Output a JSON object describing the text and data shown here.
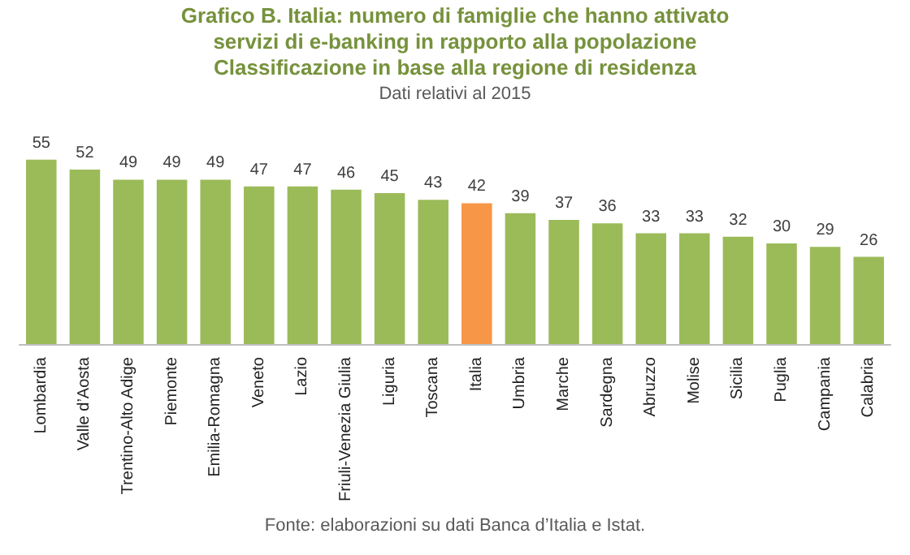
{
  "chart_data": {
    "type": "bar",
    "title": "Grafico B. Italia: numero di famiglie che hanno attivato servizi di e-banking in rapporto alla popolazione",
    "subtitle": "Classificazione in base alla regione di residenza",
    "annotations": [
      "Dati relativi al 2015",
      "Fonte: elaborazioni su dati Banca d’Italia e Istat."
    ],
    "categories": [
      "Lombardia",
      "Valle d’Aosta",
      "Trentino-Alto Adige",
      "Piemonte",
      "Emilia-Romagna",
      "Veneto",
      "Lazio",
      "Friuli-Venezia Giulia",
      "Liguria",
      "Toscana",
      "Italia",
      "Umbria",
      "Marche",
      "Sardegna",
      "Abruzzo",
      "Molise",
      "Sicilia",
      "Puglia",
      "Campania",
      "Calabria"
    ],
    "values": [
      55,
      52,
      49,
      49,
      49,
      47,
      47,
      46,
      45,
      43,
      42,
      39,
      37,
      36,
      33,
      33,
      32,
      30,
      29,
      26
    ],
    "colors": [
      "#9bbb59",
      "#9bbb59",
      "#9bbb59",
      "#9bbb59",
      "#9bbb59",
      "#9bbb59",
      "#9bbb59",
      "#9bbb59",
      "#9bbb59",
      "#9bbb59",
      "#f79646",
      "#9bbb59",
      "#9bbb59",
      "#9bbb59",
      "#9bbb59",
      "#9bbb59",
      "#9bbb59",
      "#9bbb59",
      "#9bbb59",
      "#9bbb59"
    ],
    "data_labels": true
  }
}
